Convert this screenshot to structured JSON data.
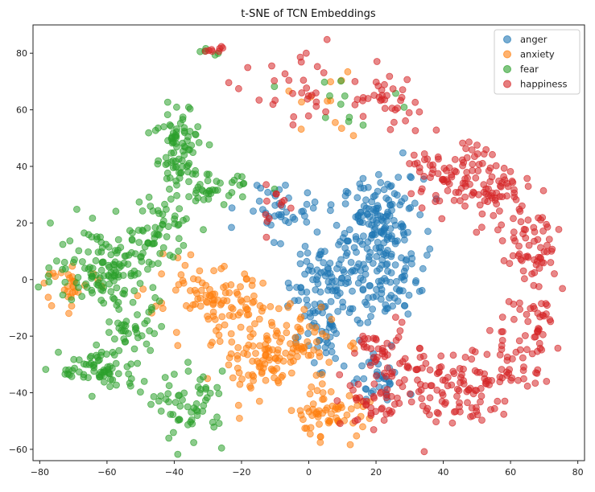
{
  "chart_data": {
    "type": "scatter",
    "title": "t-SNE of TCN Embeddings",
    "xlabel": "",
    "ylabel": "",
    "xlim": [
      -82,
      82
    ],
    "ylim": [
      -64,
      90
    ],
    "x_ticks": [
      -80,
      -60,
      -40,
      -20,
      0,
      20,
      40,
      60,
      80
    ],
    "y_ticks": [
      -60,
      -40,
      -20,
      0,
      20,
      40,
      60,
      80
    ],
    "x_tick_labels": [
      "−80",
      "−60",
      "−40",
      "−20",
      "0",
      "20",
      "40",
      "60",
      "80"
    ],
    "y_tick_labels": [
      "−60",
      "−40",
      "−20",
      "0",
      "20",
      "40",
      "60",
      "80"
    ],
    "legend_position": "top-right",
    "grid": false,
    "marker_alpha": 0.55,
    "series": [
      {
        "name": "anger",
        "color": "#1f77b4",
        "clusters": [
          {
            "cx": 22,
            "cy": 18,
            "sx": 6,
            "sy": 9,
            "n": 170
          },
          {
            "cx": 6,
            "cy": 0,
            "sx": 6,
            "sy": 8,
            "n": 110
          },
          {
            "cx": 24,
            "cy": -5,
            "sx": 4,
            "sy": 4,
            "n": 40
          },
          {
            "cx": 20,
            "cy": -35,
            "sx": 4,
            "sy": 5,
            "n": 35
          },
          {
            "cx": -8,
            "cy": 25,
            "sx": 6,
            "sy": 5,
            "n": 40
          },
          {
            "cx": 3,
            "cy": -20,
            "sx": 5,
            "sy": 5,
            "n": 35
          }
        ]
      },
      {
        "name": "anxiety",
        "color": "#ff7f0e",
        "clusters": [
          {
            "cx": -10,
            "cy": -25,
            "sx": 9,
            "sy": 8,
            "n": 150
          },
          {
            "cx": -30,
            "cy": -8,
            "sx": 9,
            "sy": 6,
            "n": 90
          },
          {
            "cx": 6,
            "cy": -48,
            "sx": 6,
            "sy": 4,
            "n": 60
          },
          {
            "cx": -70,
            "cy": -2,
            "sx": 4,
            "sy": 3,
            "n": 30
          },
          {
            "cx": 2,
            "cy": 63,
            "sx": 6,
            "sy": 6,
            "n": 12
          }
        ]
      },
      {
        "name": "fear",
        "color": "#2ca02c",
        "clusters": [
          {
            "cx": -38,
            "cy": 45,
            "sx": 4,
            "sy": 9,
            "n": 90
          },
          {
            "cx": -60,
            "cy": 5,
            "sx": 8,
            "sy": 7,
            "n": 130
          },
          {
            "cx": -62,
            "cy": -32,
            "sx": 6,
            "sy": 4,
            "n": 70
          },
          {
            "cx": -35,
            "cy": -45,
            "sx": 5,
            "sy": 6,
            "n": 60
          },
          {
            "cx": -45,
            "cy": 18,
            "sx": 5,
            "sy": 5,
            "n": 50
          },
          {
            "cx": -52,
            "cy": -18,
            "sx": 4,
            "sy": 4,
            "n": 35
          },
          {
            "cx": -28,
            "cy": 31,
            "sx": 5,
            "sy": 3,
            "n": 35
          },
          {
            "cx": 10,
            "cy": 65,
            "sx": 8,
            "sy": 5,
            "n": 12
          },
          {
            "cx": -29,
            "cy": 81,
            "sx": 2,
            "sy": 1,
            "n": 5
          }
        ]
      },
      {
        "name": "happiness",
        "color": "#d62728",
        "arc": {
          "cx": 42,
          "cy": 0,
          "r": 26,
          "start": -150,
          "end": 115,
          "n": 420
        },
        "clusters": [
          {
            "cx": 22,
            "cy": 63,
            "sx": 6,
            "sy": 5,
            "n": 35
          },
          {
            "cx": -3,
            "cy": 65,
            "sx": 7,
            "sy": 6,
            "n": 30
          },
          {
            "cx": -28,
            "cy": 81,
            "sx": 2,
            "sy": 1,
            "n": 8
          },
          {
            "cx": -10,
            "cy": 25,
            "sx": 3,
            "sy": 5,
            "n": 12
          },
          {
            "cx": 20,
            "cy": -44,
            "sx": 5,
            "sy": 4,
            "n": 35
          }
        ]
      }
    ]
  }
}
